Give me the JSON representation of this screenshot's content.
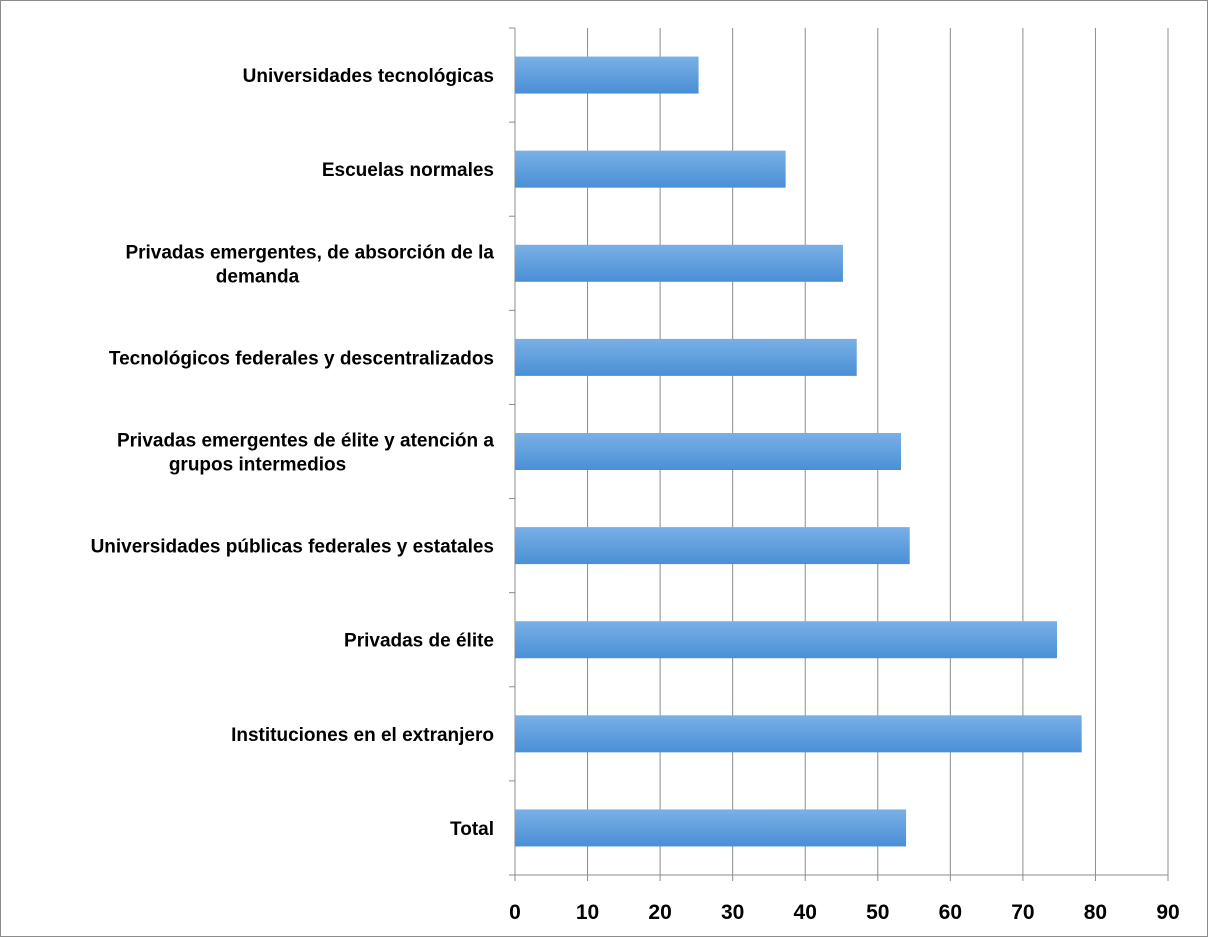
{
  "chart_data": {
    "type": "bar",
    "orientation": "horizontal",
    "categories": [
      "Universidades tecnológicas",
      "Escuelas normales",
      "Privadas emergentes, de absorción de la demanda",
      "Tecnológicos federales y descentralizados",
      "Privadas emergentes de élite y atención a grupos intermedios",
      "Universidades públicas federales y estatales",
      "Privadas de élite",
      "Instituciones en el extranjero",
      "Total"
    ],
    "values": [
      25.3,
      37.3,
      45.2,
      47.1,
      53.2,
      54.4,
      74.7,
      78.1,
      53.9
    ],
    "xlim": [
      0,
      90
    ],
    "xticks": [
      "0",
      "10",
      "20",
      "30",
      "40",
      "50",
      "60",
      "70",
      "80",
      "90"
    ],
    "grid": "vertical",
    "legend": "none",
    "bar_color": "#4a8fd6",
    "bar_color_light": "#79b0e6"
  }
}
